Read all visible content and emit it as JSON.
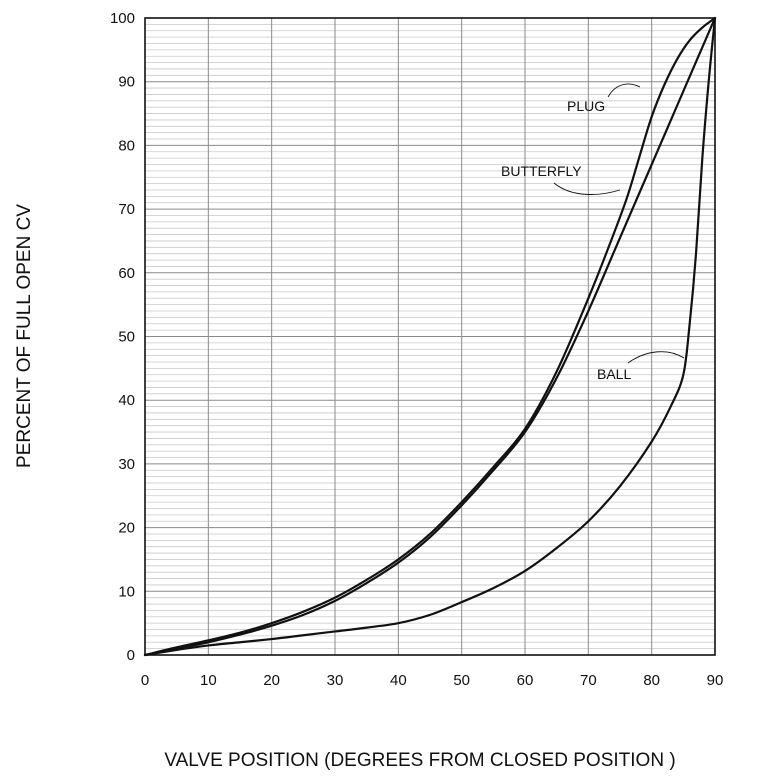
{
  "chart_data": {
    "type": "line",
    "title": "",
    "xlabel": "VALVE POSITION (DEGREES FROM CLOSED POSITION )",
    "ylabel": "PERCENT OF FULL OPEN CV",
    "xlim": [
      0,
      90
    ],
    "ylim": [
      0,
      100
    ],
    "x_ticks": [
      "0",
      "10",
      "20",
      "30",
      "40",
      "50",
      "60",
      "70",
      "80",
      "90"
    ],
    "y_ticks": [
      "0",
      "10",
      "20",
      "30",
      "40",
      "50",
      "60",
      "70",
      "80",
      "90",
      "100"
    ],
    "grid": true,
    "legend": "none",
    "series": [
      {
        "name": "PLUG",
        "x": [
          0,
          5,
          10,
          15,
          20,
          25,
          30,
          35,
          40,
          45,
          50,
          55,
          60,
          65,
          70,
          73,
          76,
          78,
          80,
          82,
          84,
          86,
          88,
          90
        ],
        "y": [
          0,
          1.2,
          2.3,
          3.5,
          5,
          6.8,
          9,
          11.8,
          15,
          19,
          24,
          29.5,
          35.5,
          44.5,
          56,
          63.5,
          71.5,
          78,
          84.5,
          89.5,
          93.5,
          96.5,
          98.5,
          100
        ]
      },
      {
        "name": "BUTTERFLY",
        "x": [
          0,
          5,
          10,
          15,
          20,
          25,
          30,
          35,
          40,
          45,
          50,
          55,
          60,
          65,
          70,
          75,
          80,
          85,
          90
        ],
        "y": [
          0,
          1,
          2,
          3.2,
          4.6,
          6.3,
          8.5,
          11.3,
          14.5,
          18.5,
          23.5,
          29,
          35,
          43.5,
          54,
          65.5,
          77,
          88.5,
          100
        ]
      },
      {
        "name": "BALL",
        "x": [
          0,
          5,
          10,
          15,
          20,
          25,
          30,
          35,
          40,
          45,
          50,
          55,
          60,
          65,
          70,
          75,
          80,
          83,
          85,
          86,
          87,
          88,
          89,
          90
        ],
        "y": [
          0,
          0.8,
          1.5,
          2,
          2.5,
          3.1,
          3.7,
          4.3,
          5,
          6.3,
          8.3,
          10.5,
          13.2,
          16.8,
          21,
          26.5,
          33.5,
          39,
          44,
          52,
          63,
          78,
          90,
          100
        ]
      }
    ],
    "annotations": [
      {
        "text": "PLUG",
        "series": "PLUG"
      },
      {
        "text": "BUTTERFLY",
        "series": "BUTTERFLY"
      },
      {
        "text": "BALL",
        "series": "BALL"
      }
    ]
  }
}
